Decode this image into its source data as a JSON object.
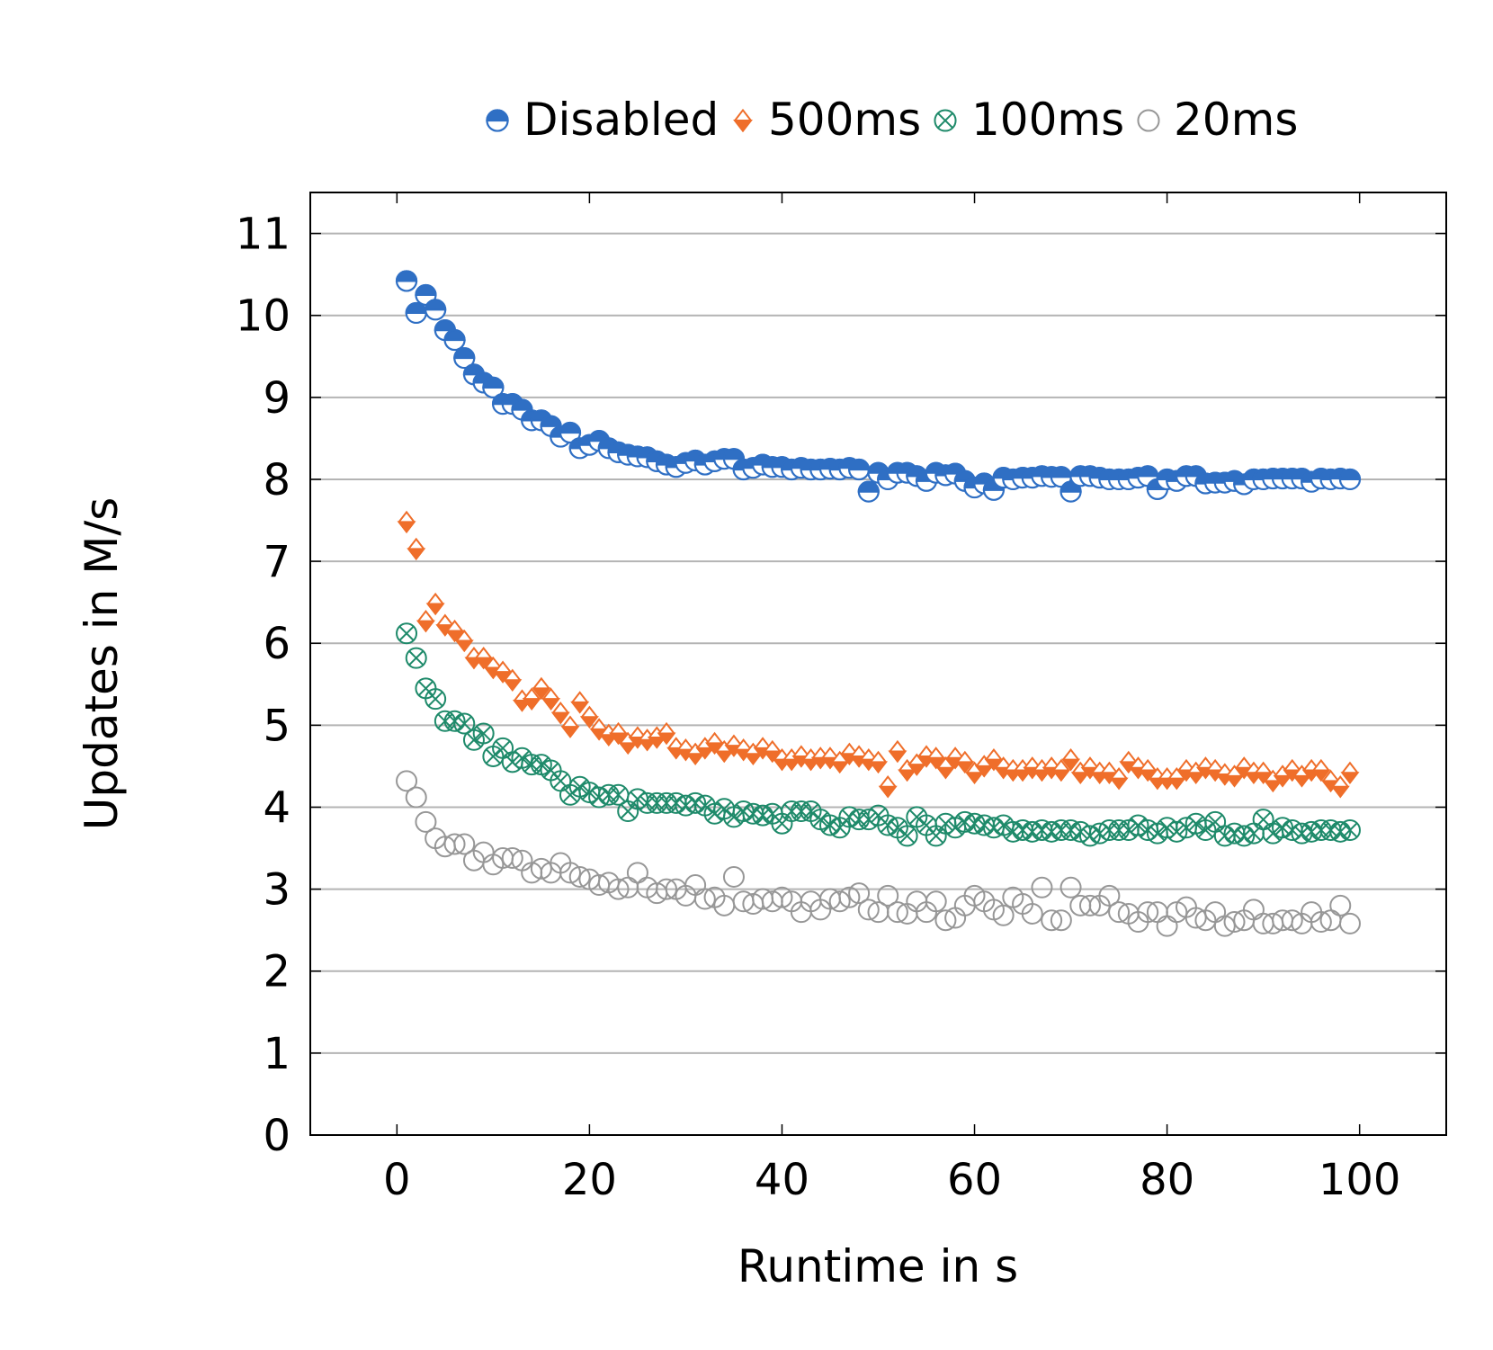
{
  "chart_data": {
    "type": "scatter",
    "title": "",
    "xlabel": "Runtime in s",
    "ylabel": "Updates in M/s",
    "xlim": [
      -9,
      109
    ],
    "ylim": [
      0,
      11.5
    ],
    "xticks": [
      0,
      20,
      40,
      60,
      80,
      100
    ],
    "yticks": [
      0,
      1,
      2,
      3,
      4,
      5,
      6,
      7,
      8,
      9,
      10,
      11
    ],
    "grid": "horizontal",
    "legend_position": "top",
    "series": [
      {
        "name": "Disabled",
        "color": "#2f6fc4",
        "marker": "half-circle",
        "x": [
          1,
          2,
          3,
          4,
          5,
          6,
          7,
          8,
          9,
          10,
          11,
          12,
          13,
          14,
          15,
          16,
          17,
          18,
          19,
          20,
          21,
          22,
          23,
          24,
          25,
          26,
          27,
          28,
          29,
          30,
          31,
          32,
          33,
          34,
          35,
          36,
          37,
          38,
          39,
          40,
          41,
          42,
          43,
          44,
          45,
          46,
          47,
          48,
          49,
          50,
          51,
          52,
          53,
          54,
          55,
          56,
          57,
          58,
          59,
          60,
          61,
          62,
          63,
          64,
          65,
          66,
          67,
          68,
          69,
          70,
          71,
          72,
          73,
          74,
          75,
          76,
          77,
          78,
          79,
          80,
          81,
          82,
          83,
          84,
          85,
          86,
          87,
          88,
          89,
          90,
          91,
          92,
          93,
          94,
          95,
          96,
          97,
          98,
          99
        ],
        "values": [
          10.42,
          10.03,
          10.25,
          10.07,
          9.82,
          9.7,
          9.48,
          9.28,
          9.18,
          9.12,
          8.92,
          8.92,
          8.85,
          8.72,
          8.72,
          8.65,
          8.52,
          8.57,
          8.38,
          8.42,
          8.47,
          8.38,
          8.33,
          8.3,
          8.28,
          8.27,
          8.22,
          8.18,
          8.15,
          8.2,
          8.23,
          8.18,
          8.22,
          8.25,
          8.25,
          8.12,
          8.14,
          8.18,
          8.15,
          8.15,
          8.12,
          8.14,
          8.12,
          8.12,
          8.13,
          8.12,
          8.14,
          8.12,
          7.85,
          8.08,
          8.0,
          8.08,
          8.08,
          8.04,
          7.98,
          8.08,
          8.05,
          8.07,
          7.98,
          7.9,
          7.95,
          7.87,
          8.02,
          8.0,
          8.02,
          8.02,
          8.04,
          8.03,
          8.03,
          7.85,
          8.04,
          8.04,
          8.02,
          8.0,
          8.0,
          8.0,
          8.02,
          8.04,
          7.88,
          8.0,
          7.98,
          8.04,
          8.04,
          7.95,
          7.96,
          7.96,
          7.98,
          7.94,
          8.0,
          8.0,
          8.01,
          8.01,
          8.01,
          8.01,
          7.97,
          8.01,
          8.0,
          8.01,
          8.0
        ]
      },
      {
        "name": "500ms",
        "color": "#ef6e2a",
        "marker": "half-diamond",
        "x": [
          1,
          2,
          3,
          4,
          5,
          6,
          7,
          8,
          9,
          10,
          11,
          12,
          13,
          14,
          15,
          16,
          17,
          18,
          19,
          20,
          21,
          22,
          23,
          24,
          25,
          26,
          27,
          28,
          29,
          30,
          31,
          32,
          33,
          34,
          35,
          36,
          37,
          38,
          39,
          40,
          41,
          42,
          43,
          44,
          45,
          46,
          47,
          48,
          49,
          50,
          51,
          52,
          53,
          54,
          55,
          56,
          57,
          58,
          59,
          60,
          61,
          62,
          63,
          64,
          65,
          66,
          67,
          68,
          69,
          70,
          71,
          72,
          73,
          74,
          75,
          76,
          77,
          78,
          79,
          80,
          81,
          82,
          83,
          84,
          85,
          86,
          87,
          88,
          89,
          90,
          91,
          92,
          93,
          94,
          95,
          96,
          97,
          98,
          99
        ],
        "values": [
          7.48,
          7.15,
          6.27,
          6.48,
          6.22,
          6.15,
          6.03,
          5.82,
          5.82,
          5.7,
          5.65,
          5.55,
          5.3,
          5.32,
          5.45,
          5.32,
          5.15,
          4.98,
          5.28,
          5.1,
          4.95,
          4.88,
          4.9,
          4.78,
          4.85,
          4.82,
          4.85,
          4.9,
          4.72,
          4.7,
          4.65,
          4.72,
          4.78,
          4.68,
          4.75,
          4.7,
          4.65,
          4.72,
          4.68,
          4.58,
          4.58,
          4.62,
          4.58,
          4.6,
          4.6,
          4.55,
          4.65,
          4.62,
          4.58,
          4.55,
          4.25,
          4.68,
          4.45,
          4.52,
          4.62,
          4.6,
          4.48,
          4.6,
          4.55,
          4.42,
          4.5,
          4.58,
          4.48,
          4.45,
          4.45,
          4.48,
          4.45,
          4.48,
          4.45,
          4.58,
          4.42,
          4.48,
          4.42,
          4.42,
          4.35,
          4.55,
          4.48,
          4.45,
          4.35,
          4.35,
          4.35,
          4.45,
          4.42,
          4.48,
          4.45,
          4.4,
          4.38,
          4.48,
          4.42,
          4.42,
          4.32,
          4.38,
          4.45,
          4.38,
          4.45,
          4.45,
          4.32,
          4.25,
          4.42
        ]
      },
      {
        "name": "100ms",
        "color": "#1e8a6a",
        "marker": "otimes",
        "x": [
          1,
          2,
          3,
          4,
          5,
          6,
          7,
          8,
          9,
          10,
          11,
          12,
          13,
          14,
          15,
          16,
          17,
          18,
          19,
          20,
          21,
          22,
          23,
          24,
          25,
          26,
          27,
          28,
          29,
          30,
          31,
          32,
          33,
          34,
          35,
          36,
          37,
          38,
          39,
          40,
          41,
          42,
          43,
          44,
          45,
          46,
          47,
          48,
          49,
          50,
          51,
          52,
          53,
          54,
          55,
          56,
          57,
          58,
          59,
          60,
          61,
          62,
          63,
          64,
          65,
          66,
          67,
          68,
          69,
          70,
          71,
          72,
          73,
          74,
          75,
          76,
          77,
          78,
          79,
          80,
          81,
          82,
          83,
          84,
          85,
          86,
          87,
          88,
          89,
          90,
          91,
          92,
          93,
          94,
          95,
          96,
          97,
          98,
          99
        ],
        "values": [
          6.12,
          5.82,
          5.45,
          5.32,
          5.05,
          5.05,
          5.02,
          4.82,
          4.9,
          4.62,
          4.72,
          4.55,
          4.6,
          4.52,
          4.52,
          4.45,
          4.32,
          4.15,
          4.25,
          4.18,
          4.12,
          4.15,
          4.15,
          3.95,
          4.1,
          4.05,
          4.05,
          4.05,
          4.05,
          4.02,
          4.05,
          4.02,
          3.92,
          3.98,
          3.88,
          3.95,
          3.92,
          3.9,
          3.92,
          3.8,
          3.95,
          3.95,
          3.95,
          3.85,
          3.78,
          3.75,
          3.88,
          3.85,
          3.85,
          3.9,
          3.78,
          3.75,
          3.65,
          3.88,
          3.78,
          3.65,
          3.8,
          3.75,
          3.82,
          3.8,
          3.78,
          3.75,
          3.78,
          3.7,
          3.72,
          3.7,
          3.72,
          3.7,
          3.72,
          3.72,
          3.7,
          3.65,
          3.68,
          3.72,
          3.72,
          3.72,
          3.78,
          3.72,
          3.68,
          3.75,
          3.7,
          3.75,
          3.8,
          3.72,
          3.82,
          3.65,
          3.68,
          3.65,
          3.68,
          3.85,
          3.68,
          3.75,
          3.72,
          3.68,
          3.7,
          3.72,
          3.72,
          3.7,
          3.72
        ]
      },
      {
        "name": "20ms",
        "color": "#979797",
        "marker": "open-circle",
        "x": [
          1,
          2,
          3,
          4,
          5,
          6,
          7,
          8,
          9,
          10,
          11,
          12,
          13,
          14,
          15,
          16,
          17,
          18,
          19,
          20,
          21,
          22,
          23,
          24,
          25,
          26,
          27,
          28,
          29,
          30,
          31,
          32,
          33,
          34,
          35,
          36,
          37,
          38,
          39,
          40,
          41,
          42,
          43,
          44,
          45,
          46,
          47,
          48,
          49,
          50,
          51,
          52,
          53,
          54,
          55,
          56,
          57,
          58,
          59,
          60,
          61,
          62,
          63,
          64,
          65,
          66,
          67,
          68,
          69,
          70,
          71,
          72,
          73,
          74,
          75,
          76,
          77,
          78,
          79,
          80,
          81,
          82,
          83,
          84,
          85,
          86,
          87,
          88,
          89,
          90,
          91,
          92,
          93,
          94,
          95,
          96,
          97,
          98,
          99
        ],
        "values": [
          4.32,
          4.12,
          3.82,
          3.62,
          3.52,
          3.55,
          3.55,
          3.35,
          3.45,
          3.3,
          3.38,
          3.38,
          3.35,
          3.2,
          3.25,
          3.2,
          3.32,
          3.2,
          3.15,
          3.12,
          3.05,
          3.08,
          3.0,
          3.02,
          3.2,
          3.02,
          2.95,
          3.0,
          3.0,
          2.92,
          3.05,
          2.88,
          2.9,
          2.8,
          3.15,
          2.85,
          2.82,
          2.88,
          2.85,
          2.9,
          2.85,
          2.72,
          2.85,
          2.75,
          2.88,
          2.85,
          2.9,
          2.95,
          2.75,
          2.72,
          2.92,
          2.72,
          2.7,
          2.85,
          2.72,
          2.85,
          2.62,
          2.65,
          2.8,
          2.92,
          2.85,
          2.75,
          2.68,
          2.9,
          2.82,
          2.7,
          3.02,
          2.62,
          2.62,
          3.02,
          2.8,
          2.8,
          2.8,
          2.92,
          2.72,
          2.7,
          2.6,
          2.72,
          2.72,
          2.55,
          2.72,
          2.78,
          2.65,
          2.62,
          2.72,
          2.55,
          2.6,
          2.62,
          2.75,
          2.58,
          2.58,
          2.62,
          2.62,
          2.58,
          2.72,
          2.6,
          2.62,
          2.8,
          2.58
        ]
      }
    ]
  }
}
